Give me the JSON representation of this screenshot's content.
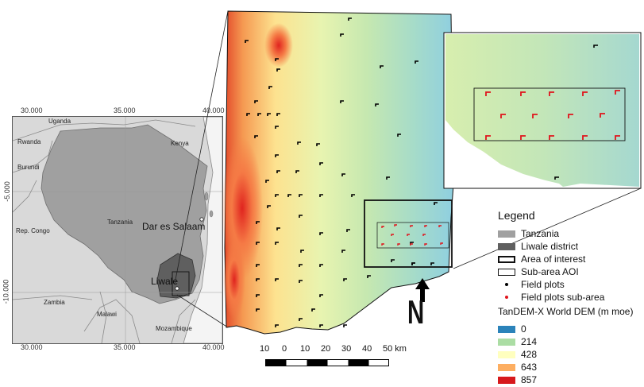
{
  "overview_map": {
    "coords_top": [
      "30.000",
      "35.000",
      "40.000"
    ],
    "coords_bottom": [
      "30.000",
      "35.000",
      "40.000"
    ],
    "coords_left": [
      "-5.000",
      "-10.000"
    ],
    "labels": {
      "uganda": "Uganda",
      "kenya": "Kenya",
      "rwanda": "Rwanda",
      "burundi": "Burundi",
      "tanzania": "Tanzania",
      "rep_congo": "Rep. Congo",
      "dar": "Dar es Salaam",
      "liwale": "Liwale",
      "zambia": "Zambia",
      "malawi": "Malawi",
      "mozambique": "Mozambique"
    }
  },
  "legend": {
    "title": "Legend",
    "items": [
      {
        "label": "Tanzania",
        "color": "#a0a0a0"
      },
      {
        "label": "Liwale district",
        "color": "#5f5f5f"
      },
      {
        "label": "Area of interest"
      },
      {
        "label": "Sub-area AOI"
      },
      {
        "label": "Field plots",
        "color": "#000000"
      },
      {
        "label": "Field plots sub-area",
        "color": "#e0141c"
      }
    ],
    "dem_title": "TanDEM-X World DEM (m moe)",
    "dem_classes": [
      {
        "label": "0",
        "color": "#2b83ba"
      },
      {
        "label": "214",
        "color": "#abdda4"
      },
      {
        "label": "428",
        "color": "#ffffbf"
      },
      {
        "label": "643",
        "color": "#fdae61"
      },
      {
        "label": "857",
        "color": "#d7191c"
      }
    ]
  },
  "scale_bar": {
    "labels": [
      "10",
      "0",
      "10",
      "20",
      "30",
      "40",
      "50 km"
    ]
  },
  "north_arrow": {
    "label": "N"
  }
}
